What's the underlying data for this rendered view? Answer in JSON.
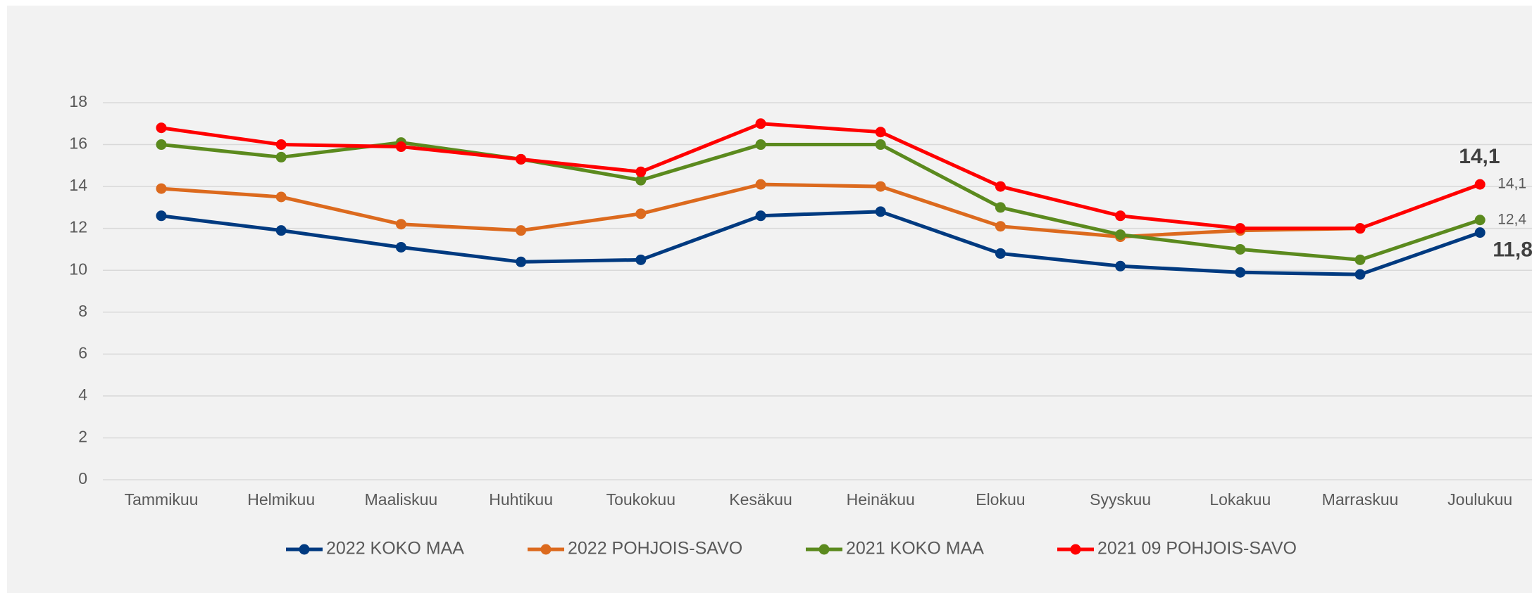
{
  "chart_data": {
    "type": "line",
    "categories": [
      "Tammikuu",
      "Helmikuu",
      "Maaliskuu",
      "Huhtikuu",
      "Toukokuu",
      "Kesäkuu",
      "Heinäkuu",
      "Elokuu",
      "Syyskuu",
      "Lokakuu",
      "Marraskuu",
      "Joulukuu"
    ],
    "series": [
      {
        "name": "2022 KOKO MAA",
        "color": "#003a80",
        "values": [
          12.6,
          11.9,
          11.1,
          10.4,
          10.5,
          12.6,
          12.8,
          10.8,
          10.2,
          9.9,
          9.8,
          11.8
        ]
      },
      {
        "name": "2022 POHJOIS-SAVO",
        "color": "#dc6a1e",
        "values": [
          13.9,
          13.5,
          12.2,
          11.9,
          12.7,
          14.1,
          14.0,
          12.1,
          11.6,
          11.9,
          12.0,
          null
        ]
      },
      {
        "name": "2021 KOKO MAA",
        "color": "#5b8a1e",
        "values": [
          16.0,
          15.4,
          16.1,
          15.3,
          14.3,
          16.0,
          16.0,
          13.0,
          11.7,
          11.0,
          10.5,
          12.4
        ],
        "value_labels": [
          null,
          null,
          null,
          null,
          null,
          null,
          null,
          null,
          null,
          null,
          null,
          "12,4"
        ]
      },
      {
        "name": "2021 09 POHJOIS-SAVO",
        "color": "#ff0000",
        "values": [
          16.8,
          16.0,
          15.9,
          15.3,
          14.7,
          17.0,
          16.6,
          14.0,
          12.6,
          12.0,
          12.0,
          14.1
        ],
        "value_labels": [
          null,
          null,
          null,
          null,
          null,
          null,
          null,
          null,
          null,
          null,
          null,
          "14,1"
        ]
      }
    ],
    "annotations": [
      {
        "label": "14,1",
        "value": 14.1
      },
      {
        "label": "11,8",
        "value": 11.8
      }
    ],
    "ylim": [
      0,
      18
    ],
    "yticks": [
      0,
      2,
      4,
      6,
      8,
      10,
      12,
      14,
      16,
      18
    ],
    "grid": true,
    "legend": "bottom"
  }
}
